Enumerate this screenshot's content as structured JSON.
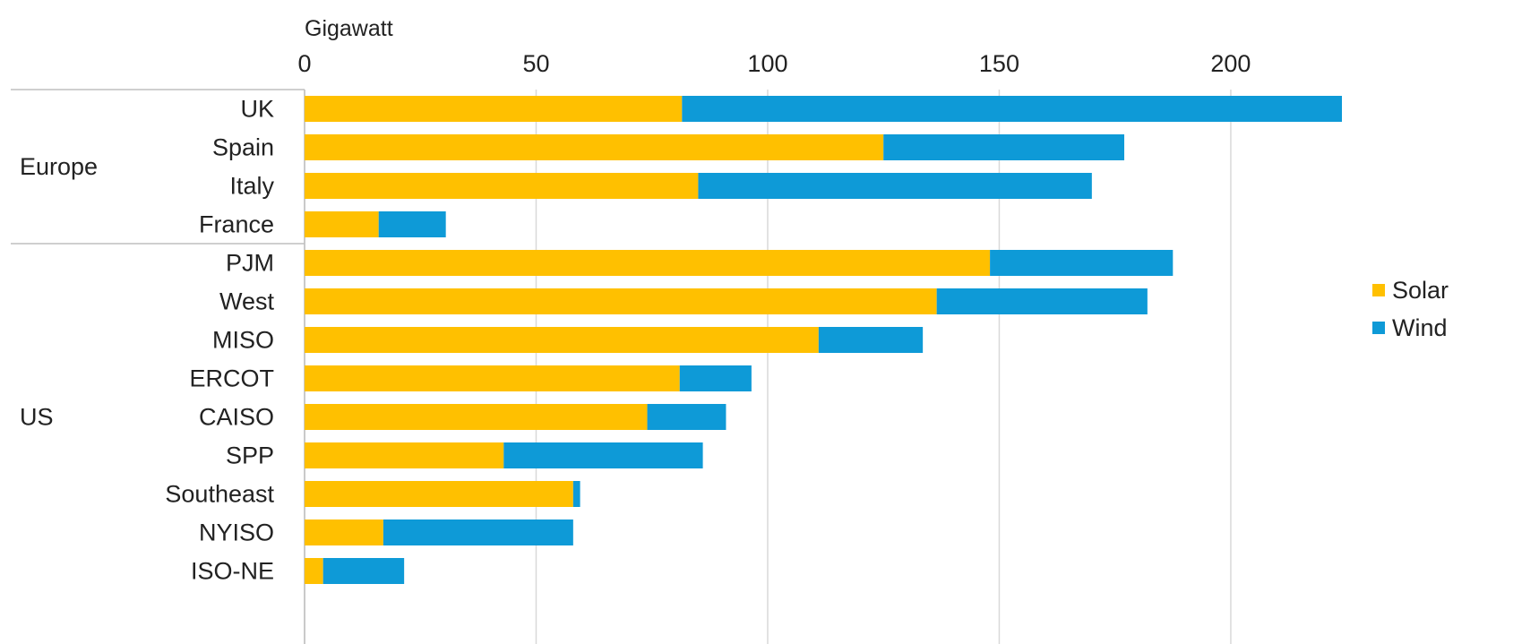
{
  "chart_data": {
    "type": "bar",
    "orientation": "horizontal",
    "stacked": true,
    "xlabel": "Gigawatt",
    "xlim": [
      0,
      224
    ],
    "xticks": [
      0,
      50,
      100,
      150,
      200
    ],
    "x_axis_position": "top",
    "grid": true,
    "legend_position": "right",
    "groups": [
      {
        "label": "Europe",
        "categories": [
          "UK",
          "Spain",
          "Italy",
          "France"
        ]
      },
      {
        "label": "US",
        "categories": [
          "PJM",
          "West",
          "MISO",
          "ERCOT",
          "CAISO",
          "SPP",
          "Southeast",
          "NYISO",
          "ISO-NE"
        ]
      }
    ],
    "categories": [
      "UK",
      "Spain",
      "Italy",
      "France",
      "PJM",
      "West",
      "MISO",
      "ERCOT",
      "CAISO",
      "SPP",
      "Southeast",
      "NYISO",
      "ISO-NE"
    ],
    "series": [
      {
        "name": "Solar",
        "color": "#FFC000",
        "values": [
          81.5,
          125,
          85,
          16,
          148,
          136.5,
          111,
          81,
          74,
          43,
          58,
          17,
          4
        ]
      },
      {
        "name": "Wind",
        "color": "#0E9AD7",
        "values": [
          142.5,
          52,
          85,
          14.5,
          39.5,
          45.5,
          22.5,
          15.5,
          17,
          43,
          1.5,
          41,
          17.5
        ]
      }
    ]
  }
}
